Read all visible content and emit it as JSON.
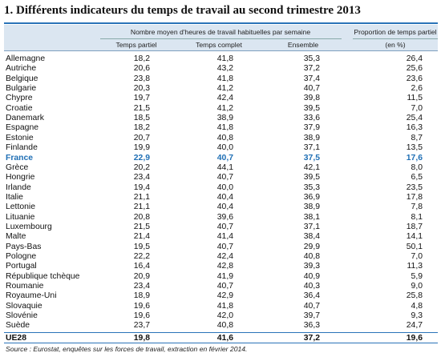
{
  "title": "1. Différents indicateurs du temps de travail au second trimestre 2013",
  "header": {
    "group_label": "Nombre moyen d'heures de travail habituelles par semaine",
    "proportion_label": "Proportion de temps partiel",
    "col_partial": "Temps partiel",
    "col_full": "Temps complet",
    "col_all": "Ensemble",
    "col_unit": "(en %)"
  },
  "rows": [
    {
      "country": "Allemagne",
      "partiel": "18,2",
      "complet": "41,8",
      "ensemble": "35,3",
      "proportion": "26,4"
    },
    {
      "country": "Autriche",
      "partiel": "20,6",
      "complet": "43,2",
      "ensemble": "37,2",
      "proportion": "25,6"
    },
    {
      "country": "Belgique",
      "partiel": "23,8",
      "complet": "41,8",
      "ensemble": "37,4",
      "proportion": "23,6"
    },
    {
      "country": "Bulgarie",
      "partiel": "20,3",
      "complet": "41,2",
      "ensemble": "40,7",
      "proportion": "2,6"
    },
    {
      "country": "Chypre",
      "partiel": "19,7",
      "complet": "42,4",
      "ensemble": "39,8",
      "proportion": "11,5"
    },
    {
      "country": "Croatie",
      "partiel": "21,5",
      "complet": "41,2",
      "ensemble": "39,5",
      "proportion": "7,0"
    },
    {
      "country": "Danemark",
      "partiel": "18,5",
      "complet": "38,9",
      "ensemble": "33,6",
      "proportion": "25,4"
    },
    {
      "country": "Espagne",
      "partiel": "18,2",
      "complet": "41,8",
      "ensemble": "37,9",
      "proportion": "16,3"
    },
    {
      "country": "Estonie",
      "partiel": "20,7",
      "complet": "40,8",
      "ensemble": "38,9",
      "proportion": "8,7"
    },
    {
      "country": "Finlande",
      "partiel": "19,9",
      "complet": "40,0",
      "ensemble": "37,1",
      "proportion": "13,5"
    },
    {
      "country": "France",
      "partiel": "22,9",
      "complet": "40,7",
      "ensemble": "37,5",
      "proportion": "17,6",
      "highlight": true
    },
    {
      "country": "Grèce",
      "partiel": "20,2",
      "complet": "44,1",
      "ensemble": "42,1",
      "proportion": "8,0"
    },
    {
      "country": "Hongrie",
      "partiel": "23,4",
      "complet": "40,7",
      "ensemble": "39,5",
      "proportion": "6,5"
    },
    {
      "country": "Irlande",
      "partiel": "19,4",
      "complet": "40,0",
      "ensemble": "35,3",
      "proportion": "23,5"
    },
    {
      "country": "Italie",
      "partiel": "21,1",
      "complet": "40,4",
      "ensemble": "36,9",
      "proportion": "17,8"
    },
    {
      "country": "Lettonie",
      "partiel": "21,1",
      "complet": "40,4",
      "ensemble": "38,9",
      "proportion": "7,8"
    },
    {
      "country": "Lituanie",
      "partiel": "20,8",
      "complet": "39,6",
      "ensemble": "38,1",
      "proportion": "8,1"
    },
    {
      "country": "Luxembourg",
      "partiel": "21,5",
      "complet": "40,7",
      "ensemble": "37,1",
      "proportion": "18,7"
    },
    {
      "country": "Malte",
      "partiel": "21,4",
      "complet": "41,4",
      "ensemble": "38,4",
      "proportion": "14,1"
    },
    {
      "country": "Pays-Bas",
      "partiel": "19,5",
      "complet": "40,7",
      "ensemble": "29,9",
      "proportion": "50,1"
    },
    {
      "country": "Pologne",
      "partiel": "22,2",
      "complet": "42,4",
      "ensemble": "40,8",
      "proportion": "7,0"
    },
    {
      "country": "Portugal",
      "partiel": "16,4",
      "complet": "42,8",
      "ensemble": "39,3",
      "proportion": "11,3"
    },
    {
      "country": "République tchèque",
      "partiel": "20,9",
      "complet": "41,9",
      "ensemble": "40,9",
      "proportion": "5,9"
    },
    {
      "country": "Roumanie",
      "partiel": "23,4",
      "complet": "40,7",
      "ensemble": "40,3",
      "proportion": "9,0"
    },
    {
      "country": "Royaume-Uni",
      "partiel": "18,9",
      "complet": "42,9",
      "ensemble": "36,4",
      "proportion": "25,8"
    },
    {
      "country": "Slovaquie",
      "partiel": "19,6",
      "complet": "41,8",
      "ensemble": "40,7",
      "proportion": "4,8"
    },
    {
      "country": "Slovénie",
      "partiel": "19,6",
      "complet": "42,0",
      "ensemble": "39,7",
      "proportion": "9,3"
    },
    {
      "country": "Suède",
      "partiel": "23,7",
      "complet": "40,8",
      "ensemble": "36,3",
      "proportion": "24,7"
    },
    {
      "country": "UE28",
      "partiel": "19,8",
      "complet": "41,6",
      "ensemble": "37,2",
      "proportion": "19,6",
      "total": true
    }
  ],
  "source": "Source : Eurostat, enquêtes sur les forces de travail, extraction en février 2014.",
  "colors": {
    "accent": "#2a73b8",
    "highlight": "#1f6fb5",
    "header_bg": "#dbe6f1"
  }
}
